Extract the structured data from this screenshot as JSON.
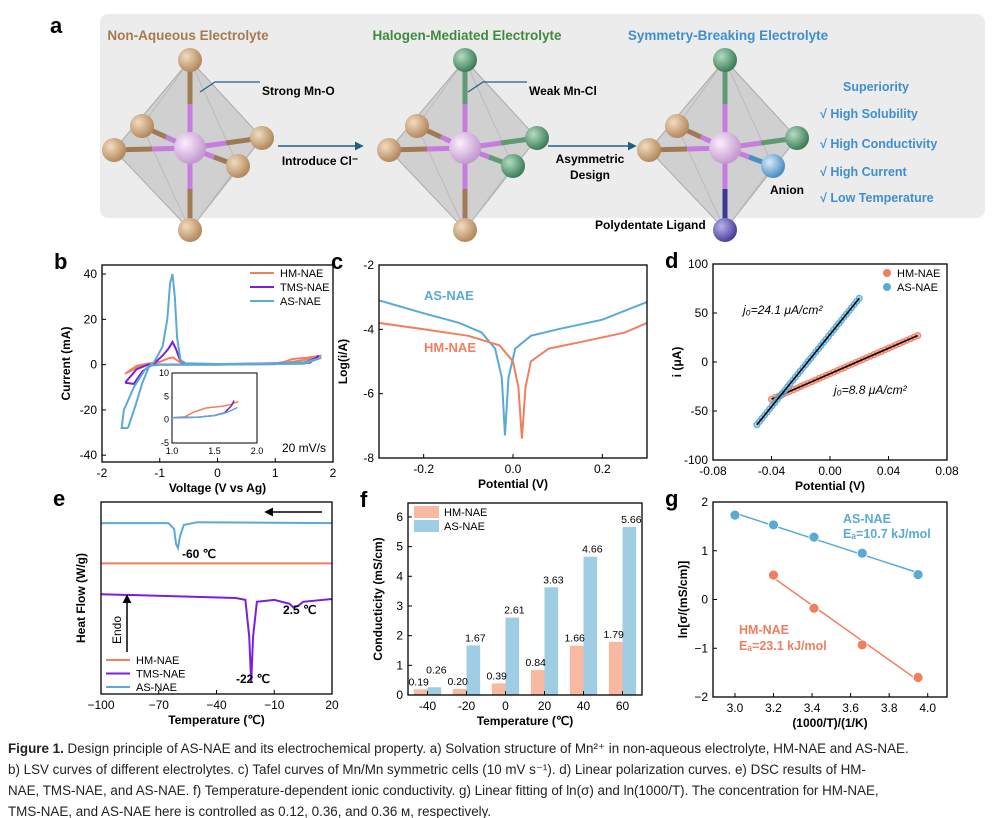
{
  "panel_a": {
    "label": "a",
    "titles": [
      "Non-Aqueous  Electrolyte",
      "Halogen-Mediated  Electrolyte",
      "Symmetry-Breaking Electrolyte"
    ],
    "strong": "Strong Mn-O",
    "weak": "Weak Mn-Cl",
    "introduce": "Introduce Cl⁻",
    "asym1": "Asymmetric",
    "asym2": "Design",
    "anion": "Anion",
    "ligand": "Polydentate Ligand",
    "superiority": "Superiority",
    "items": [
      "√ High Solubility",
      "√ High Conductivity",
      "√ High Current",
      "√ Low Temperature"
    ],
    "colors": {
      "brown": "#a57a4f",
      "green": "#3f8a3f",
      "blue": "#3f8fd0"
    }
  },
  "colors": {
    "HM": "#f07f5f",
    "TMS": "#7a1fe0",
    "AS": "#5aaad6",
    "HM_bar": "#f8b9a0",
    "AS_bar": "#9fcde4"
  },
  "chart_data": [
    {
      "panel": "b",
      "type": "line",
      "xlabel": "Voltage (V vs Ag)",
      "ylabel": "Current (mA)",
      "xlim": [
        -2,
        2
      ],
      "ylim": [
        -43,
        44
      ],
      "xticks": [
        "-2",
        "-1",
        "0",
        "1",
        "2"
      ],
      "xtick_values": [
        -2,
        -1,
        0,
        1,
        2
      ],
      "yticks": [
        "-40",
        "-20",
        "0",
        "20",
        "40"
      ],
      "ytick_values": [
        -40,
        -20,
        0,
        20,
        40
      ],
      "legend": [
        "HM-NAE",
        "TMS-NAE",
        "AS-NAE"
      ],
      "annotation": "20 mV/s",
      "series": [
        {
          "name": "HM-NAE",
          "points": [
            [
              -1.6,
              -4
            ],
            [
              -1.4,
              -0.5
            ],
            [
              -1.2,
              0.5
            ],
            [
              -1.0,
              1.2
            ],
            [
              -0.85,
              2.8
            ],
            [
              -0.77,
              3.2
            ],
            [
              -0.68,
              1.5
            ],
            [
              -0.6,
              0.4
            ],
            [
              0,
              0.1
            ],
            [
              1.0,
              0.4
            ],
            [
              1.15,
              1.2
            ],
            [
              1.3,
              2.5
            ],
            [
              1.55,
              3
            ],
            [
              1.8,
              4
            ],
            [
              1.6,
              2.4
            ],
            [
              1.0,
              0.2
            ],
            [
              0,
              0
            ],
            [
              -1.0,
              0
            ],
            [
              -1.3,
              -0.2
            ],
            [
              -1.6,
              -4
            ]
          ]
        },
        {
          "name": "TMS-NAE",
          "points": [
            [
              -1.6,
              -8
            ],
            [
              -1.45,
              -8.5
            ],
            [
              -1.3,
              -3
            ],
            [
              -1.1,
              0.5
            ],
            [
              -0.95,
              4
            ],
            [
              -0.85,
              7
            ],
            [
              -0.78,
              10
            ],
            [
              -0.72,
              7
            ],
            [
              -0.65,
              2
            ],
            [
              -0.55,
              0.4
            ],
            [
              0,
              0.2
            ],
            [
              1.5,
              0.8
            ],
            [
              1.72,
              3
            ],
            [
              1.75,
              4
            ],
            [
              1.6,
              0.8
            ],
            [
              0,
              0
            ],
            [
              -1.2,
              0
            ],
            [
              -1.4,
              -2
            ],
            [
              -1.6,
              -8
            ]
          ]
        },
        {
          "name": "AS-NAE",
          "points": [
            [
              -1.55,
              -28
            ],
            [
              -1.66,
              -28
            ],
            [
              -1.62,
              -20
            ],
            [
              -1.45,
              -10
            ],
            [
              -1.25,
              -2
            ],
            [
              -1.1,
              1
            ],
            [
              -0.95,
              8
            ],
            [
              -0.87,
              20
            ],
            [
              -0.82,
              36
            ],
            [
              -0.78,
              40
            ],
            [
              -0.74,
              30
            ],
            [
              -0.7,
              12
            ],
            [
              -0.64,
              2
            ],
            [
              -0.55,
              0.6
            ],
            [
              0,
              0.3
            ],
            [
              1.0,
              0.5
            ],
            [
              1.5,
              1
            ],
            [
              1.8,
              3
            ],
            [
              1.5,
              0.4
            ],
            [
              0,
              0
            ],
            [
              -1.0,
              0
            ],
            [
              -1.18,
              -0.5
            ],
            [
              -1.3,
              -8
            ],
            [
              -1.42,
              -18
            ],
            [
              -1.55,
              -28
            ]
          ]
        }
      ],
      "inset": {
        "xlim": [
          1.0,
          2.0
        ],
        "ylim": [
          -5,
          10
        ],
        "xticks": [
          "1.0",
          "1.5",
          "2.0"
        ],
        "xtick_values": [
          1.0,
          1.5,
          2.0
        ],
        "yticks": [
          "-5",
          "0",
          "5",
          "10"
        ],
        "ytick_values": [
          -5,
          0,
          5,
          10
        ],
        "series": [
          {
            "name": "HM-NAE",
            "points": [
              [
                1.0,
                0.4
              ],
              [
                1.15,
                0.6
              ],
              [
                1.25,
                1.6
              ],
              [
                1.4,
                2.5
              ],
              [
                1.6,
                2.9
              ],
              [
                1.7,
                3.3
              ],
              [
                1.78,
                3.9
              ]
            ]
          },
          {
            "name": "TMS-NAE",
            "points": [
              [
                1.0,
                0.4
              ],
              [
                1.3,
                0.5
              ],
              [
                1.5,
                0.9
              ],
              [
                1.62,
                1.5
              ],
              [
                1.7,
                3
              ],
              [
                1.73,
                4.1
              ]
            ]
          },
          {
            "name": "AS-NAE",
            "points": [
              [
                1.0,
                0.4
              ],
              [
                1.3,
                0.5
              ],
              [
                1.5,
                0.9
              ],
              [
                1.62,
                1.4
              ],
              [
                1.7,
                2
              ],
              [
                1.77,
                2.6
              ]
            ]
          }
        ]
      }
    },
    {
      "panel": "c",
      "type": "line",
      "xlabel": "Potential (V)",
      "ylabel": "Log(i/A)",
      "xlim": [
        -0.3,
        0.3
      ],
      "ylim": [
        -8,
        -2
      ],
      "xticks": [
        "-0.2",
        "0.0",
        "0.2"
      ],
      "xtick_values": [
        -0.2,
        0,
        0.2
      ],
      "yticks": [
        "-8",
        "-6",
        "-4",
        "-2"
      ],
      "ytick_values": [
        -8,
        -6,
        -4,
        -2
      ],
      "labels": [
        "AS-NAE",
        "HM-NAE"
      ],
      "series": [
        {
          "name": "AS-NAE",
          "points": [
            [
              -0.3,
              -3.1
            ],
            [
              -0.2,
              -3.5
            ],
            [
              -0.12,
              -3.8
            ],
            [
              -0.07,
              -4.1
            ],
            [
              -0.04,
              -4.6
            ],
            [
              -0.025,
              -5.5
            ],
            [
              -0.018,
              -7.3
            ],
            [
              -0.01,
              -5.5
            ],
            [
              0.005,
              -4.6
            ],
            [
              0.04,
              -4.2
            ],
            [
              0.1,
              -4.0
            ],
            [
              0.2,
              -3.7
            ],
            [
              0.3,
              -3.15
            ]
          ]
        },
        {
          "name": "HM-NAE",
          "points": [
            [
              -0.3,
              -3.8
            ],
            [
              -0.2,
              -4.0
            ],
            [
              -0.1,
              -4.2
            ],
            [
              -0.03,
              -4.5
            ],
            [
              0.0,
              -5.0
            ],
            [
              0.012,
              -5.8
            ],
            [
              0.02,
              -7.4
            ],
            [
              0.028,
              -5.8
            ],
            [
              0.04,
              -5.0
            ],
            [
              0.08,
              -4.6
            ],
            [
              0.15,
              -4.4
            ],
            [
              0.25,
              -4.1
            ],
            [
              0.3,
              -3.8
            ]
          ]
        }
      ]
    },
    {
      "panel": "d",
      "type": "scatter",
      "xlabel": "Potential (V)",
      "ylabel": "i (μA)",
      "xlim": [
        -0.08,
        0.08
      ],
      "ylim": [
        -100,
        100
      ],
      "xticks": [
        "-0.08",
        "-0.04",
        "0.00",
        "0.04",
        "0.08"
      ],
      "xtick_values": [
        -0.08,
        -0.04,
        0,
        0.04,
        0.08
      ],
      "yticks": [
        "-100",
        "-50",
        "0",
        "50",
        "100"
      ],
      "ytick_values": [
        -100,
        -50,
        0,
        50,
        100
      ],
      "legend": [
        "HM-NAE",
        "AS-NAE"
      ],
      "annotations": [
        "j₀=24.1 μA/cm²",
        "j₀=8.8 μA/cm²"
      ],
      "series": [
        {
          "name": "HM-NAE",
          "x_range": [
            -0.04,
            0.06
          ],
          "y_range": [
            -38,
            27
          ]
        },
        {
          "name": "AS-NAE",
          "x_range": [
            -0.05,
            0.02
          ],
          "y_range": [
            -64,
            65
          ]
        }
      ]
    },
    {
      "panel": "e",
      "type": "line",
      "xlabel": "Temperature (℃)",
      "ylabel": "Heat Flow (W/g)",
      "xlim": [
        -100,
        20
      ],
      "ylim": [
        0,
        100
      ],
      "xticks": [
        "−100",
        "−70",
        "−40",
        "−10",
        "20"
      ],
      "xtick_values": [
        -100,
        -70,
        -40,
        -10,
        20
      ],
      "legend": [
        "HM-NAE",
        "TMS-NAE",
        "AS-NAE"
      ],
      "endo": "Endo",
      "annotations": [
        "-60 ℃",
        "2.5 ℃",
        "-22 ℃"
      ],
      "series": [
        {
          "name": "AS-NAE",
          "points": [
            [
              -100,
              89
            ],
            [
              -65,
              89
            ],
            [
              -62,
              86
            ],
            [
              -61,
              78
            ],
            [
              -60,
              76
            ],
            [
              -59,
              82
            ],
            [
              -57,
              88
            ],
            [
              -50,
              89.5
            ],
            [
              20,
              89
            ]
          ]
        },
        {
          "name": "HM-NAE",
          "points": [
            [
              -100,
              68
            ],
            [
              20,
              68
            ]
          ]
        },
        {
          "name": "TMS-NAE",
          "points": [
            [
              -100,
              52
            ],
            [
              -30,
              50
            ],
            [
              -25,
              49
            ],
            [
              -23,
              30
            ],
            [
              -22,
              6
            ],
            [
              -21,
              30
            ],
            [
              -19,
              48
            ],
            [
              -10,
              49
            ],
            [
              -2,
              47
            ],
            [
              0,
              45
            ],
            [
              2.5,
              46
            ],
            [
              5,
              48
            ],
            [
              20,
              49.5
            ]
          ]
        }
      ]
    },
    {
      "panel": "f",
      "type": "bar",
      "xlabel": "Temperature (℃)",
      "ylabel": "Conducticity (mS/cm)",
      "categories": [
        "-40",
        "-20",
        "0",
        "20",
        "40",
        "60"
      ],
      "ylim": [
        0,
        6.47
      ],
      "yticks": [
        "0",
        "1",
        "2",
        "3",
        "4",
        "5",
        "6"
      ],
      "ytick_values": [
        0,
        1,
        2,
        3,
        4,
        5,
        6
      ],
      "legend": [
        "HM-NAE",
        "AS-NAE"
      ],
      "series": [
        {
          "name": "HM-NAE",
          "values": [
            0.19,
            0.2,
            0.39,
            0.84,
            1.66,
            1.79
          ],
          "labels": [
            "0.19",
            "0.20",
            "0.39",
            "0.84",
            "1.66",
            "1.79"
          ]
        },
        {
          "name": "AS-NAE",
          "values": [
            0.26,
            1.67,
            2.61,
            3.63,
            4.66,
            5.66
          ],
          "labels": [
            "0.26",
            "1.67",
            "2.61",
            "3.63",
            "4.66",
            "5.66"
          ]
        }
      ]
    },
    {
      "panel": "g",
      "type": "scatter",
      "xlabel": "(1000/T)/(1/K)",
      "ylabel": "ln[σ/(mS/cm)]",
      "xlim": [
        2.886,
        4.1
      ],
      "ylim": [
        -2,
        2
      ],
      "xticks": [
        "3.0",
        "3.2",
        "3.4",
        "3.6",
        "3.8",
        "4.0"
      ],
      "xtick_values": [
        3.0,
        3.2,
        3.4,
        3.6,
        3.8,
        4.0
      ],
      "yticks": [
        "−2",
        "−1",
        "0",
        "1",
        "2"
      ],
      "ytick_values": [
        -2,
        -1,
        0,
        1,
        2
      ],
      "annotations": [
        {
          "name": "AS-NAE",
          "ea": "Eₐ=10.7 kJ/mol"
        },
        {
          "name": "HM-NAE",
          "ea": "Eₐ=23.1 kJ/mol"
        }
      ],
      "series": [
        {
          "name": "AS-NAE",
          "x": [
            3.0,
            3.2,
            3.41,
            3.66,
            3.95
          ],
          "y": [
            1.73,
            1.53,
            1.28,
            0.95,
            0.51
          ]
        },
        {
          "name": "HM-NAE",
          "x": [
            3.2,
            3.41,
            3.66,
            3.95
          ],
          "y": [
            0.5,
            -0.18,
            -0.93,
            -1.6
          ]
        }
      ]
    }
  ],
  "caption": {
    "title": "Figure 1.",
    "lines": [
      "Design principle of AS-NAE and its electrochemical property. a) Solvation structure of Mn²⁺ in non-aqueous electrolyte, HM-NAE and AS-NAE.",
      "b) LSV curves of different electrolytes. c) Tafel curves of Mn/Mn symmetric cells (10 mV s⁻¹). d) Linear polarization curves. e) DSC results of HM-",
      "NAE, TMS-NAE, and AS-NAE. f) Temperature-dependent ionic conductivity. g) Linear fitting of ln(σ) and ln(1000/T). The concentration for HM-NAE,",
      "TMS-NAE, and AS-NAE here is controlled as 0.12, 0.36, and 0.36 м, respectively."
    ]
  }
}
